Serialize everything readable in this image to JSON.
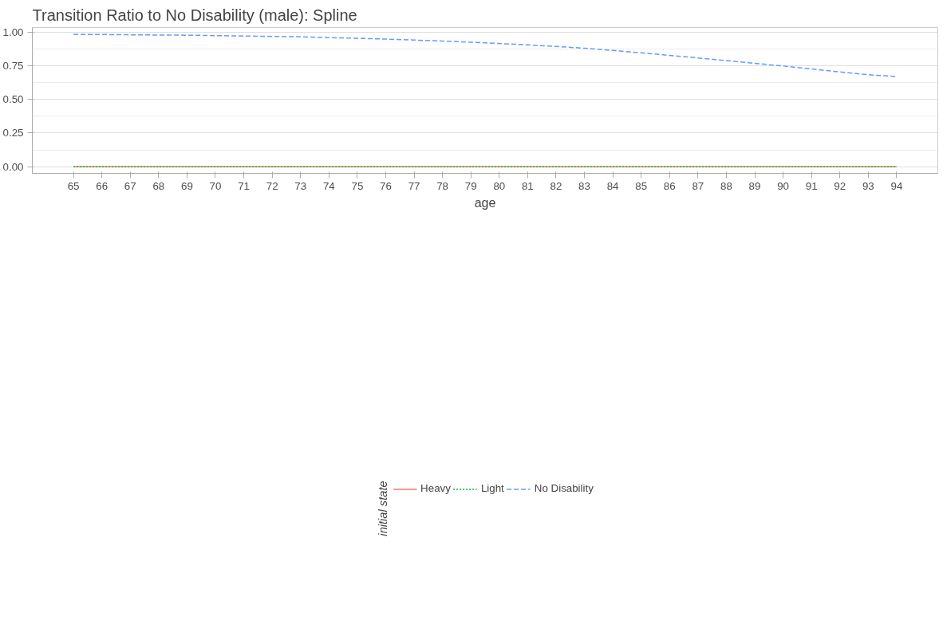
{
  "chart_data": {
    "type": "line",
    "title": "Transition Ratio to No Disability (male): Spline",
    "xlabel": "age",
    "legend_title": "initial state",
    "x": [
      65,
      66,
      67,
      68,
      69,
      70,
      71,
      72,
      73,
      74,
      75,
      76,
      77,
      78,
      79,
      80,
      81,
      82,
      83,
      84,
      85,
      86,
      87,
      88,
      89,
      90,
      91,
      92,
      93,
      94
    ],
    "series": [
      {
        "name": "Heavy",
        "color": "#f8766d",
        "line_style": "solid",
        "values": [
          0,
          0,
          0,
          0,
          0,
          0,
          0,
          0,
          0,
          0,
          0,
          0,
          0,
          0,
          0,
          0,
          0,
          0,
          0,
          0,
          0,
          0,
          0,
          0,
          0,
          0,
          0,
          0,
          0,
          0
        ]
      },
      {
        "name": "Light",
        "color": "#00ba38",
        "line_style": "dotted",
        "values": [
          0,
          0,
          0,
          0,
          0,
          0,
          0,
          0,
          0,
          0,
          0,
          0,
          0,
          0,
          0,
          0,
          0,
          0,
          0,
          0,
          0,
          0,
          0,
          0,
          0,
          0,
          0,
          0,
          0,
          0
        ]
      },
      {
        "name": "No Disability",
        "color": "#619cff",
        "line_style": "dashed",
        "values": [
          0.983,
          0.982,
          0.98,
          0.978,
          0.977,
          0.974,
          0.971,
          0.968,
          0.965,
          0.959,
          0.954,
          0.948,
          0.941,
          0.933,
          0.925,
          0.915,
          0.905,
          0.893,
          0.88,
          0.864,
          0.846,
          0.827,
          0.808,
          0.788,
          0.768,
          0.748,
          0.726,
          0.704,
          0.683,
          0.67
        ]
      }
    ],
    "xlim": [
      63.55,
      95.45
    ],
    "ylim": [
      -0.049,
      1.034
    ],
    "xticks": [
      65,
      66,
      67,
      68,
      69,
      70,
      71,
      72,
      73,
      74,
      75,
      76,
      77,
      78,
      79,
      80,
      81,
      82,
      83,
      84,
      85,
      86,
      87,
      88,
      89,
      90,
      91,
      92,
      93,
      94
    ],
    "yticks": [
      {
        "value": 0,
        "label": "0.00"
      },
      {
        "value": 0.25,
        "label": "0.25"
      },
      {
        "value": 0.5,
        "label": "0.50"
      },
      {
        "value": 0.75,
        "label": "0.75"
      },
      {
        "value": 1,
        "label": "1.00"
      }
    ],
    "grid": true,
    "legend": "bottom"
  }
}
